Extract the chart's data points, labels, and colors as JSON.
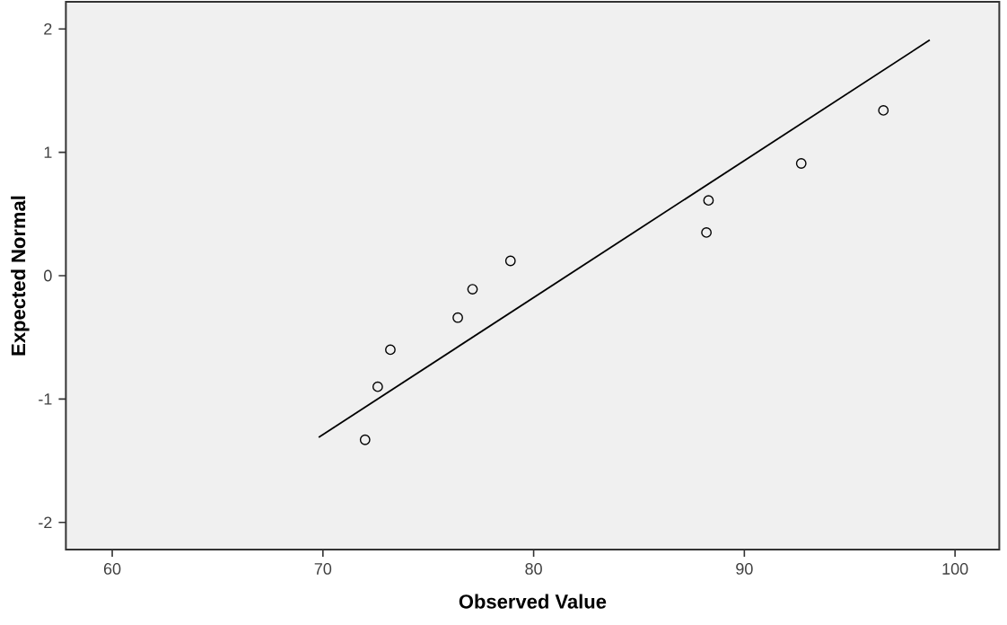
{
  "chart_data": {
    "type": "scatter",
    "xlabel": "Observed Value",
    "ylabel": "Expected Normal",
    "xlim": [
      57.8,
      102.1
    ],
    "ylim": [
      -2.22,
      2.22
    ],
    "xticks": [
      60,
      70,
      80,
      90,
      100
    ],
    "yticks": [
      -2,
      -1,
      0,
      1,
      2
    ],
    "grid": false,
    "marker": "circle",
    "series": [
      {
        "color": "#000000",
        "x": [
          72.0,
          72.6,
          73.2,
          76.4,
          77.1,
          78.9,
          88.2,
          88.3,
          92.7,
          96.6
        ],
        "values": [
          -1.33,
          -0.9,
          -0.6,
          -0.34,
          -0.11,
          0.12,
          0.35,
          0.61,
          0.91,
          1.34
        ]
      },
      {
        "type": "line",
        "marker": "none",
        "color": "#000000",
        "x": [
          69.8,
          98.8
        ],
        "values": [
          -1.31,
          1.91
        ]
      }
    ]
  }
}
